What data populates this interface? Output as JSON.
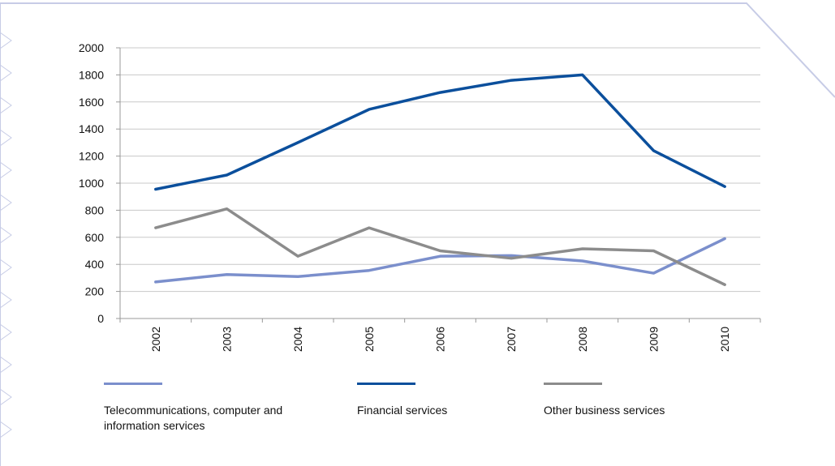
{
  "chart_data": {
    "type": "line",
    "x": [
      "2002",
      "2003",
      "2004",
      "2005",
      "2006",
      "2007",
      "2008",
      "2009",
      "2010"
    ],
    "ylim": [
      0,
      2000
    ],
    "yticks": [
      0,
      200,
      400,
      600,
      800,
      1000,
      1200,
      1400,
      1600,
      1800,
      2000
    ],
    "grid": true,
    "legend_position": "bottom",
    "series": [
      {
        "name": "Telecommunications, computer and information services",
        "color": "#7b8fcc",
        "values": [
          270,
          325,
          310,
          355,
          460,
          465,
          425,
          335,
          590
        ]
      },
      {
        "name": "Financial services",
        "color": "#0b4f9c",
        "values": [
          955,
          1060,
          1300,
          1545,
          1670,
          1760,
          1800,
          1240,
          975
        ]
      },
      {
        "name": "Other business services",
        "color": "#8c8c8c",
        "values": [
          670,
          810,
          460,
          670,
          500,
          445,
          515,
          500,
          250
        ]
      }
    ]
  }
}
